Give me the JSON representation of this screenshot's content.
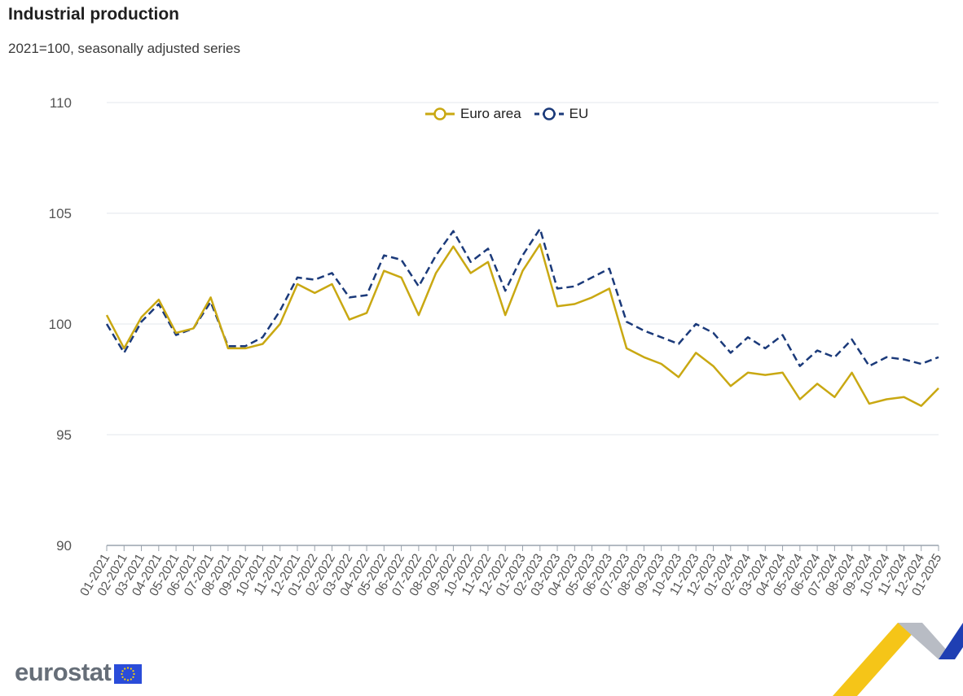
{
  "header": {
    "title": "Industrial production",
    "subtitle": "2021=100, seasonally adjusted series"
  },
  "logo": {
    "text": "eurostat"
  },
  "colors": {
    "euro_area": "#c9a812",
    "eu": "#1b3a7a",
    "grid": "#e3e7ec",
    "axis_text": "#555555"
  },
  "chart_data": {
    "type": "line",
    "title": "Industrial production",
    "subtitle": "2021=100, seasonally adjusted series",
    "ylim": [
      90,
      110
    ],
    "yticks": [
      90,
      95,
      100,
      105,
      110
    ],
    "grid": true,
    "legend": "top-center",
    "categories": [
      "01-2021",
      "02-2021",
      "03-2021",
      "04-2021",
      "05-2021",
      "06-2021",
      "07-2021",
      "08-2021",
      "09-2021",
      "10-2021",
      "11-2021",
      "12-2021",
      "01-2022",
      "02-2022",
      "03-2022",
      "04-2022",
      "05-2022",
      "06-2022",
      "07-2022",
      "08-2022",
      "09-2022",
      "10-2022",
      "11-2022",
      "12-2022",
      "01-2023",
      "02-2023",
      "03-2023",
      "04-2023",
      "05-2023",
      "06-2023",
      "07-2023",
      "08-2023",
      "09-2023",
      "10-2023",
      "11-2023",
      "12-2023",
      "01-2024",
      "02-2024",
      "03-2024",
      "04-2024",
      "05-2024",
      "06-2024",
      "07-2024",
      "08-2024",
      "09-2024",
      "10-2024",
      "11-2024",
      "12-2024",
      "01-2025"
    ],
    "series": [
      {
        "name": "Euro area",
        "style": "solid",
        "color": "#c9a812",
        "values": [
          100.4,
          98.9,
          100.3,
          101.1,
          99.6,
          99.8,
          101.2,
          98.9,
          98.9,
          99.1,
          100.0,
          101.8,
          101.4,
          101.8,
          100.2,
          100.5,
          102.4,
          102.1,
          100.4,
          102.3,
          103.5,
          102.3,
          102.8,
          100.4,
          102.4,
          103.6,
          100.8,
          100.9,
          101.2,
          101.6,
          98.9,
          98.5,
          98.2,
          97.6,
          98.7,
          98.1,
          97.2,
          97.8,
          97.7,
          97.8,
          96.6,
          97.3,
          96.7,
          97.8,
          96.4,
          96.6,
          96.7,
          96.3,
          97.1
        ]
      },
      {
        "name": "EU",
        "style": "dashed",
        "color": "#1b3a7a",
        "values": [
          100.0,
          98.7,
          100.1,
          100.9,
          99.5,
          99.8,
          101.0,
          99.0,
          99.0,
          99.4,
          100.6,
          102.1,
          102.0,
          102.3,
          101.2,
          101.3,
          103.1,
          102.9,
          101.7,
          103.1,
          104.2,
          102.8,
          103.4,
          101.5,
          103.1,
          104.3,
          101.6,
          101.7,
          102.1,
          102.5,
          100.1,
          99.7,
          99.4,
          99.1,
          100.0,
          99.6,
          98.7,
          99.4,
          98.9,
          99.5,
          98.1,
          98.8,
          98.5,
          99.3,
          98.1,
          98.5,
          98.4,
          98.2,
          98.5
        ]
      }
    ]
  }
}
